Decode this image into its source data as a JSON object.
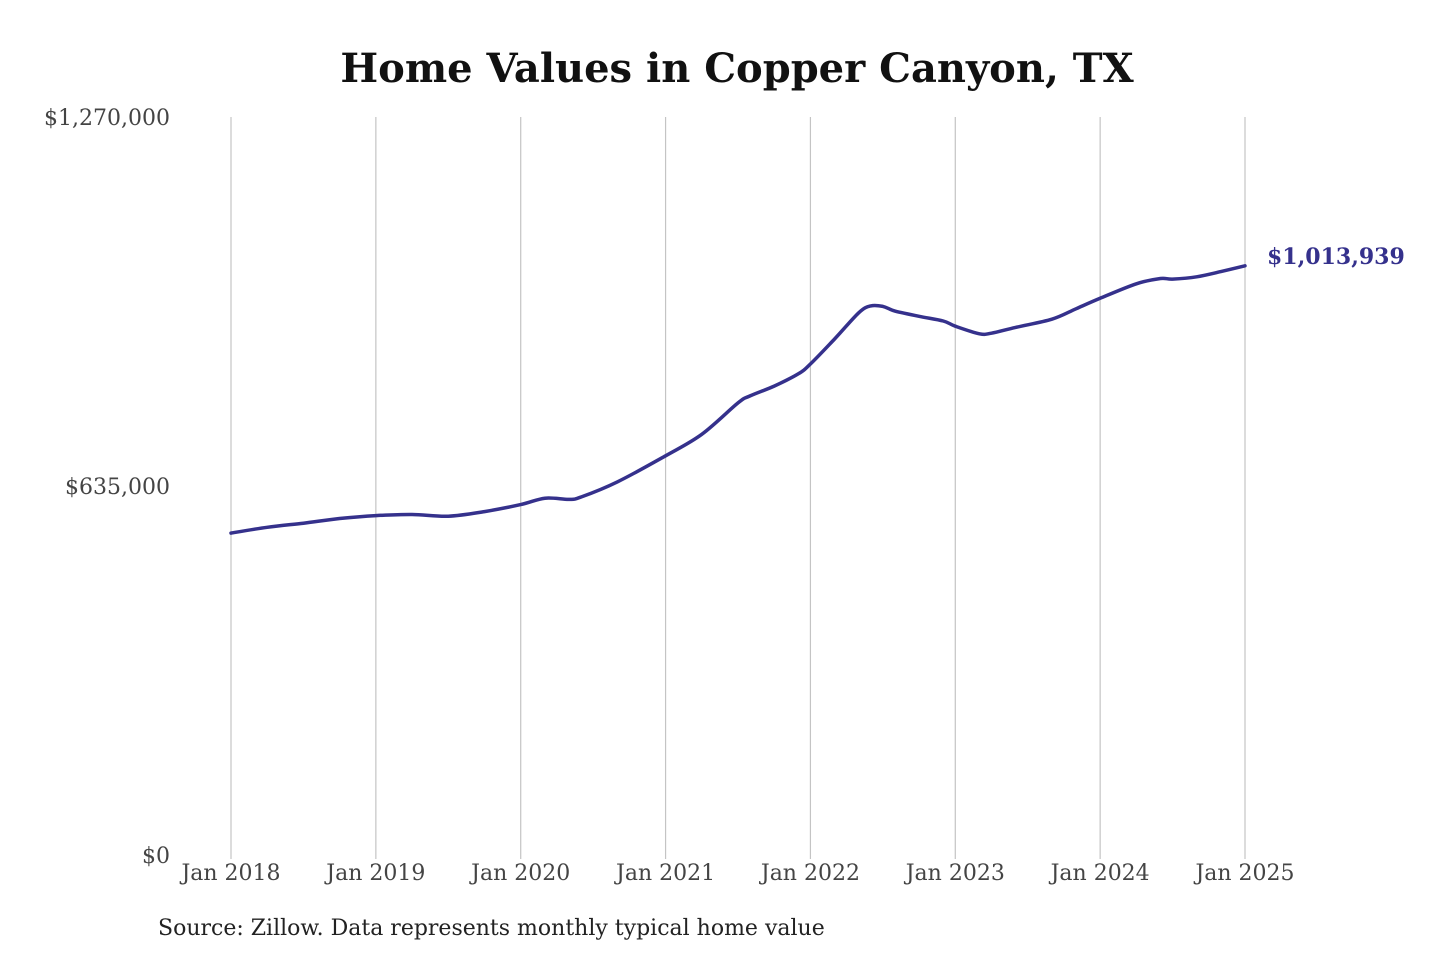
{
  "chart_data": {
    "type": "line",
    "title": "Home Values in Copper Canyon, TX",
    "xlabel": "",
    "ylabel": "",
    "ylim": [
      0,
      1270000
    ],
    "y_ticks": [
      {
        "value": 0,
        "label": "$0"
      },
      {
        "value": 635000,
        "label": "$635,000"
      },
      {
        "value": 1270000,
        "label": "$1,270,000"
      }
    ],
    "x_ticks": [
      {
        "value": "2018-01",
        "label": "Jan 2018"
      },
      {
        "value": "2019-01",
        "label": "Jan 2019"
      },
      {
        "value": "2020-01",
        "label": "Jan 2020"
      },
      {
        "value": "2021-01",
        "label": "Jan 2021"
      },
      {
        "value": "2022-01",
        "label": "Jan 2022"
      },
      {
        "value": "2023-01",
        "label": "Jan 2023"
      },
      {
        "value": "2024-01",
        "label": "Jan 2024"
      },
      {
        "value": "2025-01",
        "label": "Jan 2025"
      }
    ],
    "grid": {
      "vertical": true,
      "horizontal": false
    },
    "legend": "none",
    "series": [
      {
        "color": "#35318c",
        "end_label": "$1,013,939",
        "points": [
          {
            "x": "2018-01",
            "y": 554000
          },
          {
            "x": "2018-04",
            "y": 564000
          },
          {
            "x": "2018-07",
            "y": 571000
          },
          {
            "x": "2018-10",
            "y": 579000
          },
          {
            "x": "2019-01",
            "y": 584000
          },
          {
            "x": "2019-04",
            "y": 586000
          },
          {
            "x": "2019-07",
            "y": 583000
          },
          {
            "x": "2019-10",
            "y": 591000
          },
          {
            "x": "2020-01",
            "y": 603000
          },
          {
            "x": "2020-03",
            "y": 614000
          },
          {
            "x": "2020-05",
            "y": 612000
          },
          {
            "x": "2020-06",
            "y": 616000
          },
          {
            "x": "2020-09",
            "y": 642000
          },
          {
            "x": "2021-01",
            "y": 687000
          },
          {
            "x": "2021-04",
            "y": 724000
          },
          {
            "x": "2021-07",
            "y": 778000
          },
          {
            "x": "2021-08",
            "y": 790000
          },
          {
            "x": "2021-10",
            "y": 807000
          },
          {
            "x": "2021-12",
            "y": 828000
          },
          {
            "x": "2022-01",
            "y": 845000
          },
          {
            "x": "2022-03",
            "y": 888000
          },
          {
            "x": "2022-05",
            "y": 933000
          },
          {
            "x": "2022-06",
            "y": 945000
          },
          {
            "x": "2022-07",
            "y": 944000
          },
          {
            "x": "2022-08",
            "y": 936000
          },
          {
            "x": "2022-10",
            "y": 927000
          },
          {
            "x": "2022-12",
            "y": 919000
          },
          {
            "x": "2023-01",
            "y": 910000
          },
          {
            "x": "2023-03",
            "y": 897000
          },
          {
            "x": "2023-04",
            "y": 898000
          },
          {
            "x": "2023-06",
            "y": 908000
          },
          {
            "x": "2023-09",
            "y": 922000
          },
          {
            "x": "2023-11",
            "y": 940000
          },
          {
            "x": "2024-01",
            "y": 958000
          },
          {
            "x": "2024-04",
            "y": 983000
          },
          {
            "x": "2024-06",
            "y": 992000
          },
          {
            "x": "2024-07",
            "y": 991000
          },
          {
            "x": "2024-09",
            "y": 995000
          },
          {
            "x": "2024-11",
            "y": 1004000
          },
          {
            "x": "2025-01",
            "y": 1013939
          }
        ]
      }
    ],
    "source": "Source: Zillow. Data represents monthly typical home value"
  }
}
